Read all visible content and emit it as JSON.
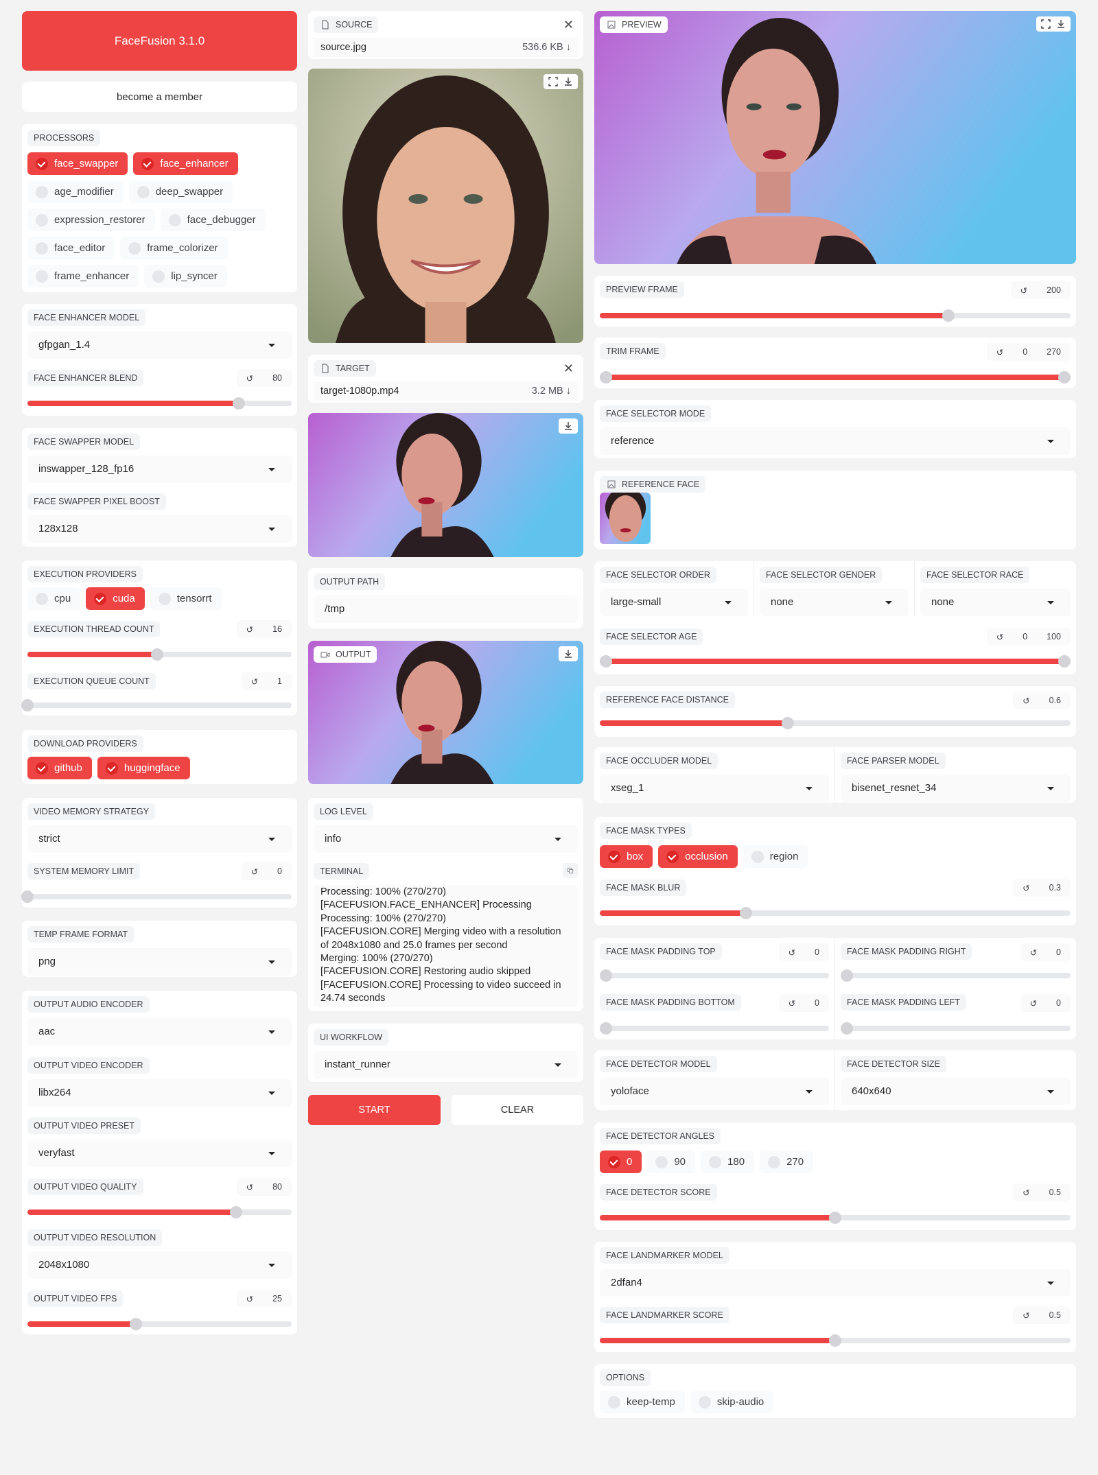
{
  "app": {
    "title": "FaceFusion 3.1.0",
    "member": "become a member"
  },
  "colors": {
    "accent": "#ef4444",
    "background": "#f3f3f3",
    "panel": "#ffffff"
  },
  "icons": {
    "reset": "reset-icon",
    "dropdown": "caret-down-icon",
    "close": "close-icon",
    "download": "download-icon",
    "fullscreen": "fullscreen-icon",
    "copy": "copy-icon",
    "file": "file-icon",
    "image": "image-icon",
    "video": "video-icon"
  },
  "processors": {
    "label": "PROCESSORS",
    "items": [
      {
        "label": "face_swapper",
        "checked": true
      },
      {
        "label": "face_enhancer",
        "checked": true
      },
      {
        "label": "age_modifier",
        "checked": false
      },
      {
        "label": "deep_swapper",
        "checked": false
      },
      {
        "label": "expression_restorer",
        "checked": false
      },
      {
        "label": "face_debugger",
        "checked": false
      },
      {
        "label": "face_editor",
        "checked": false
      },
      {
        "label": "frame_colorizer",
        "checked": false
      },
      {
        "label": "frame_enhancer",
        "checked": false
      },
      {
        "label": "lip_syncer",
        "checked": false
      }
    ]
  },
  "face_enhancer": {
    "model_label": "FACE ENHANCER MODEL",
    "model": "gfpgan_1.4",
    "blend_label": "FACE ENHANCER BLEND",
    "blend": "80",
    "blend_fill": 0.8
  },
  "face_swapper": {
    "model_label": "FACE SWAPPER MODEL",
    "model": "inswapper_128_fp16",
    "boost_label": "FACE SWAPPER PIXEL BOOST",
    "boost": "128x128"
  },
  "execution": {
    "providers_label": "EXECUTION PROVIDERS",
    "providers": [
      {
        "label": "cpu",
        "checked": false
      },
      {
        "label": "cuda",
        "checked": true
      },
      {
        "label": "tensorrt",
        "checked": false
      }
    ],
    "thread_label": "EXECUTION THREAD COUNT",
    "thread": "16",
    "thread_fill": 0.49,
    "queue_label": "EXECUTION QUEUE COUNT",
    "queue": "1",
    "queue_fill": 0
  },
  "download": {
    "label": "DOWNLOAD PROVIDERS",
    "providers": [
      {
        "label": "github",
        "checked": true
      },
      {
        "label": "huggingface",
        "checked": true
      }
    ]
  },
  "memory": {
    "strategy_label": "VIDEO MEMORY STRATEGY",
    "strategy": "strict",
    "limit_label": "SYSTEM MEMORY LIMIT",
    "limit": "0",
    "limit_fill": 0
  },
  "temp": {
    "label": "TEMP FRAME FORMAT",
    "value": "png"
  },
  "output_settings": {
    "audio_label": "OUTPUT AUDIO ENCODER",
    "audio": "aac",
    "video_label": "OUTPUT VIDEO ENCODER",
    "video": "libx264",
    "preset_label": "OUTPUT VIDEO PRESET",
    "preset": "veryfast",
    "quality_label": "OUTPUT VIDEO QUALITY",
    "quality": "80",
    "quality_fill": 0.79,
    "resolution_label": "OUTPUT VIDEO RESOLUTION",
    "resolution": "2048x1080",
    "fps_label": "OUTPUT VIDEO FPS",
    "fps": "25",
    "fps_fill": 0.41
  },
  "source": {
    "label": "SOURCE",
    "file": "source.jpg",
    "size": "536.6 KB ↓"
  },
  "target": {
    "label": "TARGET",
    "file": "target-1080p.mp4",
    "size": "3.2 MB ↓"
  },
  "output_path": {
    "label": "OUTPUT PATH",
    "value": "/tmp"
  },
  "output": {
    "label": "OUTPUT"
  },
  "log": {
    "label": "LOG LEVEL",
    "value": "info",
    "terminal_label": "TERMINAL",
    "lines": [
      "Processing: 100% (270/270)",
      "[FACEFUSION.FACE_ENHANCER] Processing",
      "Processing: 100% (270/270)",
      "[FACEFUSION.CORE] Merging video with a resolution of 2048x1080 and 25.0 frames per second",
      "Merging: 100% (270/270)",
      "[FACEFUSION.CORE] Restoring audio skipped",
      "[FACEFUSION.CORE] Processing to video succeed in 24.74 seconds"
    ]
  },
  "workflow": {
    "label": "UI WORKFLOW",
    "value": "instant_runner"
  },
  "actions": {
    "start": "START",
    "clear": "CLEAR"
  },
  "preview": {
    "label": "PREVIEW",
    "frame_label": "PREVIEW FRAME",
    "frame": "200",
    "frame_fill": 0.74,
    "trim_label": "TRIM FRAME",
    "trim_start": "0",
    "trim_end": "270",
    "trim_from": 0,
    "trim_to": 1
  },
  "selector": {
    "mode_label": "FACE SELECTOR MODE",
    "mode": "reference",
    "reference_label": "REFERENCE FACE",
    "order_label": "FACE SELECTOR ORDER",
    "order": "large-small",
    "gender_label": "FACE SELECTOR GENDER",
    "gender": "none",
    "race_label": "FACE SELECTOR RACE",
    "race": "none",
    "age_label": "FACE SELECTOR AGE",
    "age_start": "0",
    "age_end": "100",
    "age_from": 0,
    "age_to": 1,
    "distance_label": "REFERENCE FACE DISTANCE",
    "distance": "0.6",
    "distance_fill": 0.4
  },
  "masks": {
    "occluder_label": "FACE OCCLUDER MODEL",
    "occluder": "xseg_1",
    "parser_label": "FACE PARSER MODEL",
    "parser": "bisenet_resnet_34",
    "types_label": "FACE MASK TYPES",
    "types": [
      {
        "label": "box",
        "checked": true
      },
      {
        "label": "occlusion",
        "checked": true
      },
      {
        "label": "region",
        "checked": false
      }
    ],
    "blur_label": "FACE MASK BLUR",
    "blur": "0.3",
    "blur_fill": 0.31,
    "pad_top_label": "FACE MASK PADDING TOP",
    "pad_top": "0",
    "pad_right_label": "FACE MASK PADDING RIGHT",
    "pad_right": "0",
    "pad_bottom_label": "FACE MASK PADDING BOTTOM",
    "pad_bottom": "0",
    "pad_left_label": "FACE MASK PADDING LEFT",
    "pad_left": "0"
  },
  "detector": {
    "model_label": "FACE DETECTOR MODEL",
    "model": "yoloface",
    "size_label": "FACE DETECTOR SIZE",
    "size": "640x640",
    "angles_label": "FACE DETECTOR ANGLES",
    "angles": [
      {
        "label": "0",
        "checked": true
      },
      {
        "label": "90",
        "checked": false
      },
      {
        "label": "180",
        "checked": false
      },
      {
        "label": "270",
        "checked": false
      }
    ],
    "score_label": "FACE DETECTOR SCORE",
    "score": "0.5",
    "score_fill": 0.5
  },
  "landmarker": {
    "model_label": "FACE LANDMARKER MODEL",
    "model": "2dfan4",
    "score_label": "FACE LANDMARKER SCORE",
    "score": "0.5",
    "score_fill": 0.5
  },
  "options": {
    "label": "OPTIONS",
    "items": [
      {
        "label": "keep-temp",
        "checked": false
      },
      {
        "label": "skip-audio",
        "checked": false
      }
    ]
  }
}
